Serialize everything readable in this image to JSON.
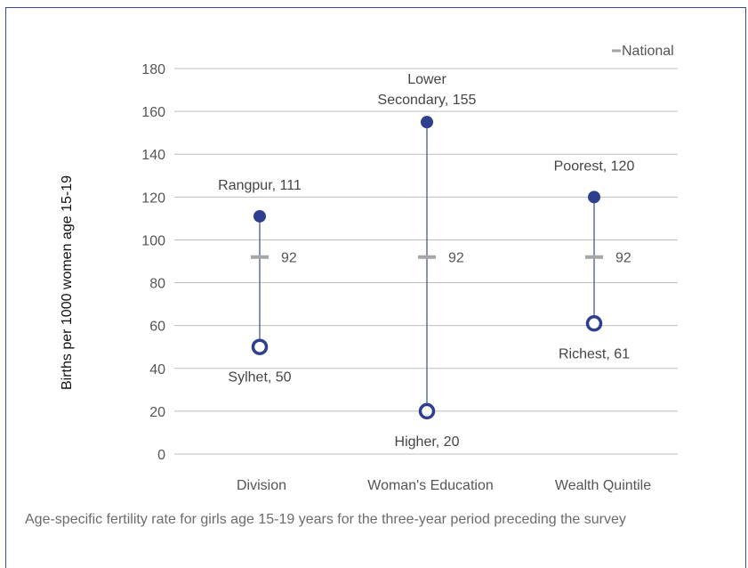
{
  "chart_data": {
    "type": "range",
    "ylabel": "Births per 1000 women age 15-19",
    "ylim": [
      0,
      180
    ],
    "yticks": [
      0,
      20,
      40,
      60,
      80,
      100,
      120,
      140,
      160,
      180
    ],
    "legend": {
      "label": "National",
      "position": "top-right"
    },
    "national_value": 92,
    "categories": [
      {
        "name": "Division",
        "high": {
          "label": "Rangpur",
          "value": 111,
          "text": "Rangpur, 111"
        },
        "low": {
          "label": "Sylhet",
          "value": 50,
          "text": "Sylhet, 50"
        },
        "national": 92
      },
      {
        "name": "Woman's Education",
        "high": {
          "label": "Lower Secondary",
          "value": 155,
          "text_lines": [
            "Lower",
            "Secondary, 155"
          ]
        },
        "low": {
          "label": "Higher",
          "value": 20,
          "text": "Higher, 20"
        },
        "national": 92
      },
      {
        "name": "Wealth Quintile",
        "high": {
          "label": "Poorest",
          "value": 120,
          "text": "Poorest, 120"
        },
        "low": {
          "label": "Richest",
          "value": 61,
          "text": "Richest, 61"
        },
        "national": 92
      }
    ],
    "colors": {
      "point": "#2e3f8f",
      "line": "#3b4a8c",
      "national": "#a6a6a6",
      "grid": "#bfbfbf"
    }
  },
  "caption": "Age-specific fertility rate for girls age 15-19 years for the three-year period preceding the survey"
}
